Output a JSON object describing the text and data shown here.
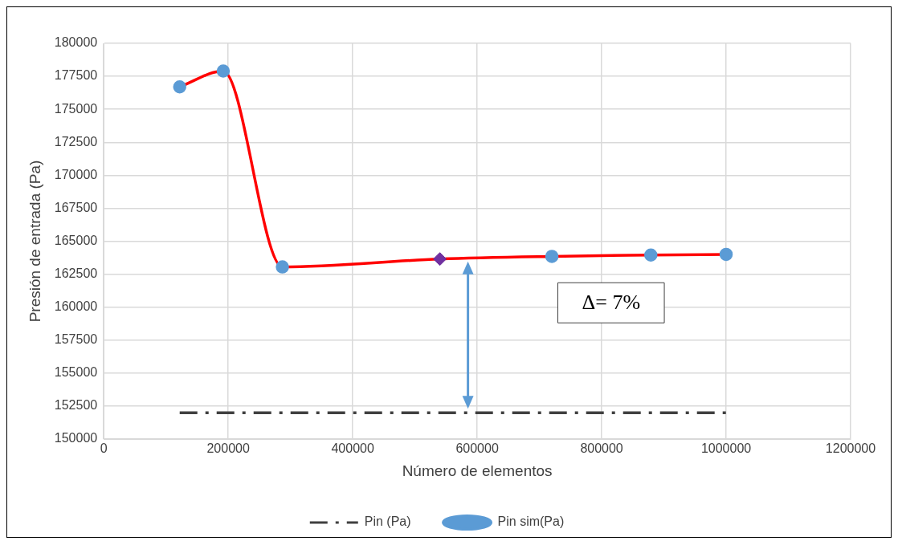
{
  "chart_data": {
    "type": "line",
    "xlabel": "Número de elementos",
    "ylabel": "Presión de entrada (Pa)",
    "xlim": [
      0,
      1200000
    ],
    "xticks": [
      0,
      200000,
      400000,
      600000,
      800000,
      1000000,
      1200000
    ],
    "ylim": [
      150000,
      180000
    ],
    "yticks": [
      150000,
      152500,
      155000,
      157500,
      160000,
      162500,
      165000,
      167500,
      170000,
      172500,
      175000,
      177500,
      180000
    ],
    "grid": true,
    "legend": "bottom",
    "series": [
      {
        "name": "Pin (Pa)",
        "color": "#404040",
        "line_style": "dashed",
        "marker": "none",
        "x": [
          122000,
          1000000
        ],
        "values": [
          152000,
          152000
        ]
      },
      {
        "name": "Pin sim(Pa)",
        "color": "#ff0000",
        "marker": "circle",
        "colors": [
          "#5b9bd5",
          "#5b9bd5",
          "#5b9bd5",
          null,
          "#5b9bd5",
          "#5b9bd5",
          "#5b9bd5"
        ],
        "x": [
          122000,
          192000,
          287000,
          540000,
          720000,
          879000,
          1000000
        ],
        "values": [
          176700,
          177900,
          163050,
          163650,
          163850,
          163950,
          164000
        ]
      },
      {
        "type": "scatter",
        "color": "#7030a0",
        "marker": "diamond",
        "x": [
          540000
        ],
        "values": [
          163650
        ]
      }
    ],
    "annotations": [
      "Δ= 7%"
    ]
  }
}
